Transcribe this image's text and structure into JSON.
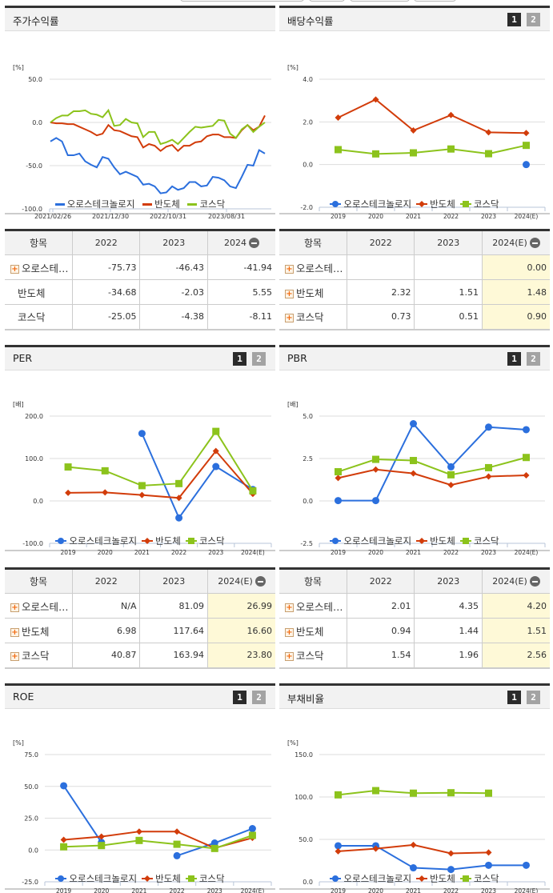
{
  "top": {
    "right_text": "..."
  },
  "series_names": [
    "오로스테크놀로지",
    "반도체",
    "코스닥"
  ],
  "colors": {
    "company": "#2b6fdd",
    "sector": "#d23c0a",
    "market": "#8cc31c"
  },
  "page_buttons": [
    "1",
    "2"
  ],
  "stock_return": {
    "title": "주가수익률",
    "unit": "[%]",
    "y_ticks": [
      "50.0",
      "0.0",
      "-50.0",
      "-100.0"
    ],
    "x_ticks": [
      "2021/02/26",
      "2021/12/30",
      "2022/10/31",
      "2023/08/31"
    ],
    "table": {
      "headers": [
        "항목",
        "2022",
        "2023",
        "2024"
      ],
      "rows": [
        {
          "name": "오로스테…",
          "expand": true,
          "values": [
            "-75.73",
            "-46.43",
            "-41.94"
          ]
        },
        {
          "name": "반도체",
          "expand": false,
          "values": [
            "-34.68",
            "-2.03",
            "5.55"
          ]
        },
        {
          "name": "코스닥",
          "expand": false,
          "values": [
            "-25.05",
            "-4.38",
            "-8.11"
          ]
        }
      ]
    }
  },
  "dividend": {
    "title": "배당수익률",
    "unit": "[%]",
    "y_ticks": [
      "4.0",
      "2.0",
      "0.0",
      "-2.0"
    ],
    "x_ticks": [
      "2019",
      "2020",
      "2021",
      "2022",
      "2023",
      "2024(E)"
    ],
    "table": {
      "headers": [
        "항목",
        "2022",
        "2023",
        "2024(E)"
      ],
      "rows": [
        {
          "name": "오로스테…",
          "values": [
            "",
            "",
            "0.00"
          ]
        },
        {
          "name": "반도체",
          "values": [
            "2.32",
            "1.51",
            "1.48"
          ]
        },
        {
          "name": "코스닥",
          "values": [
            "0.73",
            "0.51",
            "0.90"
          ]
        }
      ]
    }
  },
  "per": {
    "title": "PER",
    "unit": "[배]",
    "y_ticks": [
      "200.0",
      "100.0",
      "0.0",
      "-100.0"
    ],
    "x_ticks": [
      "2019",
      "2020",
      "2021",
      "2022",
      "2023",
      "2024(E)"
    ],
    "table": {
      "headers": [
        "항목",
        "2022",
        "2023",
        "2024(E)"
      ],
      "rows": [
        {
          "name": "오로스테…",
          "values": [
            "N/A",
            "81.09",
            "26.99"
          ]
        },
        {
          "name": "반도체",
          "values": [
            "6.98",
            "117.64",
            "16.60"
          ]
        },
        {
          "name": "코스닥",
          "values": [
            "40.87",
            "163.94",
            "23.80"
          ]
        }
      ]
    }
  },
  "pbr": {
    "title": "PBR",
    "unit": "[배]",
    "y_ticks": [
      "5.0",
      "2.5",
      "0.0",
      "-2.5"
    ],
    "x_ticks": [
      "2019",
      "2020",
      "2021",
      "2022",
      "2023",
      "2024(E)"
    ],
    "table": {
      "headers": [
        "항목",
        "2022",
        "2023",
        "2024(E)"
      ],
      "rows": [
        {
          "name": "오로스테…",
          "values": [
            "2.01",
            "4.35",
            "4.20"
          ]
        },
        {
          "name": "반도체",
          "values": [
            "0.94",
            "1.44",
            "1.51"
          ]
        },
        {
          "name": "코스닥",
          "values": [
            "1.54",
            "1.96",
            "2.56"
          ]
        }
      ]
    }
  },
  "roe": {
    "title": "ROE",
    "unit": "[%]",
    "y_ticks": [
      "75.0",
      "50.0",
      "25.0",
      "0.0",
      "-25.0"
    ],
    "x_ticks": [
      "2019",
      "2020",
      "2021",
      "2022",
      "2023",
      "2024(E)"
    ]
  },
  "debt": {
    "title": "부채비율",
    "unit": "[%]",
    "y_ticks": [
      "150.0",
      "100.0",
      "50.0",
      "0.0"
    ],
    "x_ticks": [
      "2019",
      "2020",
      "2021",
      "2022",
      "2023",
      "2024(E)"
    ]
  },
  "chart_data": [
    {
      "type": "line",
      "title": "주가수익률",
      "ylabel": "[%]",
      "ylim": [
        -100,
        50
      ],
      "x_ticks": [
        "2021/02/26",
        "2021/12/30",
        "2022/10/31",
        "2023/08/31"
      ],
      "series": [
        {
          "name": "오로스테크놀로지",
          "values": [
            -22,
            -18,
            -22,
            -38,
            -38,
            -36,
            -45,
            -49,
            -52,
            -40,
            -42,
            -52,
            -60,
            -57,
            -60,
            -63,
            -72,
            -71,
            -74,
            -82,
            -81,
            -74,
            -78,
            -76,
            -69,
            -69,
            -74,
            -73,
            -63,
            -64,
            -67,
            -74,
            -76,
            -63,
            -49,
            -50,
            -32,
            -36
          ]
        },
        {
          "name": "반도체",
          "values": [
            0,
            -1,
            -1,
            -2,
            -2,
            -5,
            -8,
            -11,
            -15,
            -13,
            -3,
            -9,
            -10,
            -13,
            -16,
            -17,
            -29,
            -25,
            -27,
            -33,
            -28,
            -26,
            -33,
            -27,
            -27,
            -23,
            -22,
            -16,
            -14,
            -14,
            -17,
            -17,
            -18,
            -9,
            -3,
            -9,
            -5,
            8
          ]
        },
        {
          "name": "코스닥",
          "values": [
            0,
            5,
            8,
            8,
            13,
            13,
            14,
            10,
            9,
            6,
            14,
            -4,
            -3,
            4,
            0,
            -1,
            -17,
            -11,
            -11,
            -25,
            -23,
            -20,
            -25,
            -18,
            -11,
            -5,
            -6,
            -5,
            -4,
            3,
            2,
            -13,
            -18,
            -8,
            -3,
            -11,
            -5,
            0
          ]
        }
      ]
    },
    {
      "type": "line",
      "title": "배당수익률",
      "ylabel": "[%]",
      "ylim": [
        -2,
        4
      ],
      "categories": [
        "2019",
        "2020",
        "2021",
        "2022",
        "2023",
        "2024(E)"
      ],
      "series": [
        {
          "name": "오로스테크놀로지",
          "values": [
            null,
            null,
            null,
            null,
            null,
            0.0
          ]
        },
        {
          "name": "반도체",
          "values": [
            2.2,
            3.05,
            1.6,
            2.32,
            1.51,
            1.48
          ]
        },
        {
          "name": "코스닥",
          "values": [
            0.7,
            0.5,
            0.55,
            0.73,
            0.51,
            0.9
          ]
        }
      ]
    },
    {
      "type": "line",
      "title": "PER",
      "ylabel": "[배]",
      "ylim": [
        -100,
        200
      ],
      "categories": [
        "2019",
        "2020",
        "2021",
        "2022",
        "2023",
        "2024(E)"
      ],
      "series": [
        {
          "name": "오로스테크놀로지",
          "values": [
            null,
            null,
            159,
            -40,
            81.09,
            26.99
          ]
        },
        {
          "name": "반도체",
          "values": [
            19,
            20,
            14,
            6.98,
            117.64,
            16.6
          ]
        },
        {
          "name": "코스닥",
          "values": [
            80,
            71,
            36,
            40.87,
            163.94,
            23.8
          ]
        }
      ]
    },
    {
      "type": "line",
      "title": "PBR",
      "ylabel": "[배]",
      "ylim": [
        -2.5,
        5
      ],
      "categories": [
        "2019",
        "2020",
        "2021",
        "2022",
        "2023",
        "2024(E)"
      ],
      "series": [
        {
          "name": "오로스테크놀로지",
          "values": [
            0.02,
            0.02,
            4.55,
            2.01,
            4.35,
            4.2
          ]
        },
        {
          "name": "반도체",
          "values": [
            1.35,
            1.85,
            1.62,
            0.94,
            1.44,
            1.51
          ]
        },
        {
          "name": "코스닥",
          "values": [
            1.72,
            2.45,
            2.38,
            1.54,
            1.96,
            2.56
          ]
        }
      ]
    },
    {
      "type": "line",
      "title": "ROE",
      "ylabel": "[%]",
      "ylim": [
        -25,
        75
      ],
      "categories": [
        "2019",
        "2020",
        "2021",
        "2022",
        "2023",
        "2024(E)"
      ],
      "series": [
        {
          "name": "오로스테크놀로지",
          "values": [
            50.5,
            6,
            null,
            -4.5,
            5.5,
            16.8
          ]
        },
        {
          "name": "반도체",
          "values": [
            8,
            10.5,
            14.5,
            14.5,
            1.5,
            9.5
          ]
        },
        {
          "name": "코스닥",
          "values": [
            2.5,
            3.5,
            7.5,
            4.5,
            1.2,
            11.5
          ]
        }
      ]
    },
    {
      "type": "line",
      "title": "부채비율",
      "ylabel": "[%]",
      "ylim": [
        0,
        150
      ],
      "categories": [
        "2019",
        "2020",
        "2021",
        "2022",
        "2023",
        "2024(E)"
      ],
      "series": [
        {
          "name": "오로스테크놀로지",
          "values": [
            42.5,
            42.5,
            16.5,
            14.5,
            19.5,
            19.5
          ]
        },
        {
          "name": "반도체",
          "values": [
            36,
            39,
            43.5,
            33.5,
            34.5,
            null
          ]
        },
        {
          "name": "코스닥",
          "values": [
            102.5,
            107.5,
            104.5,
            105,
            104.5,
            null
          ]
        }
      ]
    }
  ]
}
